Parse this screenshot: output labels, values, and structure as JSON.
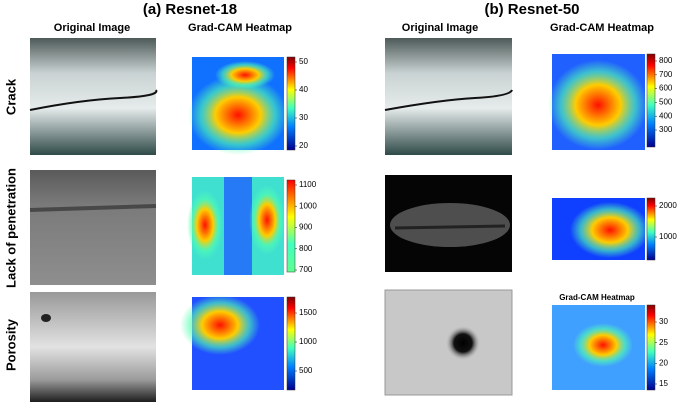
{
  "panels": [
    {
      "title": "(a) Resnet-18",
      "columns": [
        "Original Image",
        "Grad-CAM Heatmap"
      ],
      "colorbars": [
        {
          "ticks": [
            20,
            30,
            40,
            50
          ]
        },
        {
          "ticks": [
            700,
            800,
            900,
            1000,
            1100
          ]
        },
        {
          "ticks": [
            500,
            1000,
            1500
          ]
        }
      ]
    },
    {
      "title": "(b) Resnet-50",
      "columns": [
        "Original Image",
        "Grad-CAM Heatmap"
      ],
      "colorbars": [
        {
          "ticks": [
            300,
            400,
            500,
            600,
            700,
            800
          ]
        },
        {
          "ticks": [
            1000,
            2000
          ]
        },
        {
          "ticks": [
            15,
            20,
            25,
            30
          ]
        }
      ],
      "inset_title": "Grad-CAM Heatmap"
    }
  ],
  "rows": [
    "Crack",
    "Lack of penetration",
    "Porosity"
  ]
}
